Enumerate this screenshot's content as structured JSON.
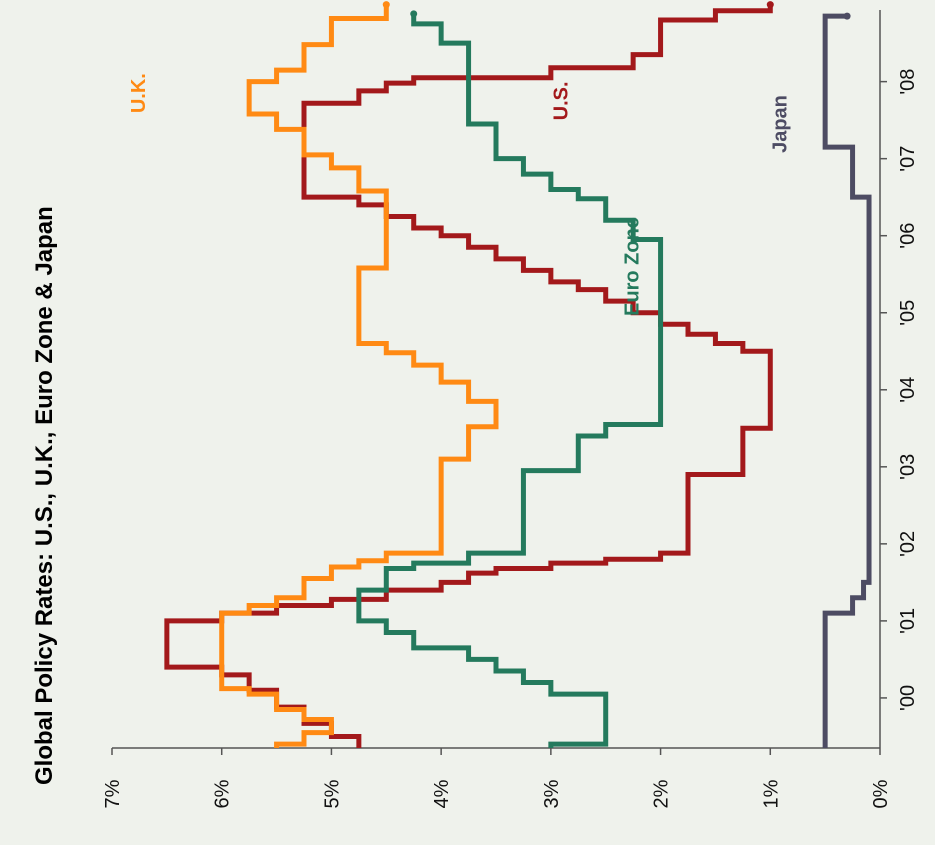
{
  "chart_data": {
    "type": "line",
    "orientation": "rotated-90-clockwise",
    "title": "Global Policy Rates: U.S., U.K., Euro Zone & Japan",
    "xlabel": "",
    "ylabel": "",
    "xlim": [
      1999.35,
      2008.8
    ],
    "ylim": [
      0,
      7
    ],
    "y_ticks": [
      "0%",
      "1%",
      "2%",
      "3%",
      "4%",
      "5%",
      "6%",
      "7%"
    ],
    "x_ticks": [
      "'00",
      "'01",
      "'02",
      "'03",
      "'04",
      "'05",
      "'06",
      "'07",
      "'08"
    ],
    "grid": false,
    "legend": "inline labels",
    "series": [
      {
        "name": "U.S.",
        "color": "#a3191b",
        "label_pos": [
          2007.75,
          2.85
        ],
        "points": [
          [
            1999.35,
            4.75
          ],
          [
            1999.5,
            5.0
          ],
          [
            1999.67,
            5.25
          ],
          [
            1999.88,
            5.5
          ],
          [
            2000.1,
            5.75
          ],
          [
            2000.3,
            6.0
          ],
          [
            2000.4,
            6.5
          ],
          [
            2001.0,
            6.0
          ],
          [
            2001.1,
            5.5
          ],
          [
            2001.2,
            5.0
          ],
          [
            2001.28,
            4.5
          ],
          [
            2001.4,
            4.0
          ],
          [
            2001.5,
            3.75
          ],
          [
            2001.62,
            3.5
          ],
          [
            2001.68,
            3.0
          ],
          [
            2001.75,
            2.5
          ],
          [
            2001.8,
            2.0
          ],
          [
            2001.88,
            1.75
          ],
          [
            2002.9,
            1.25
          ],
          [
            2003.5,
            1.0
          ],
          [
            2004.5,
            1.25
          ],
          [
            2004.6,
            1.5
          ],
          [
            2004.72,
            1.75
          ],
          [
            2004.85,
            2.0
          ],
          [
            2005.0,
            2.25
          ],
          [
            2005.15,
            2.5
          ],
          [
            2005.3,
            2.75
          ],
          [
            2005.4,
            3.0
          ],
          [
            2005.55,
            3.25
          ],
          [
            2005.7,
            3.5
          ],
          [
            2005.85,
            3.75
          ],
          [
            2006.0,
            4.0
          ],
          [
            2006.1,
            4.25
          ],
          [
            2006.25,
            4.5
          ],
          [
            2006.4,
            4.75
          ],
          [
            2006.5,
            5.25
          ],
          [
            2007.72,
            4.75
          ],
          [
            2007.88,
            4.5
          ],
          [
            2007.98,
            4.25
          ],
          [
            2008.05,
            3.0
          ],
          [
            2008.18,
            2.25
          ],
          [
            2008.35,
            2.0
          ],
          [
            2008.8,
            1.5
          ],
          [
            2008.92,
            1.0
          ],
          [
            2009.0,
            1.0
          ]
        ]
      },
      {
        "name": "U.K.",
        "color": "#ff8a14",
        "label_pos": [
          2007.85,
          6.7
        ],
        "points": [
          [
            1999.35,
            5.5
          ],
          [
            1999.4,
            5.25
          ],
          [
            1999.55,
            5.0
          ],
          [
            1999.72,
            5.25
          ],
          [
            1999.85,
            5.5
          ],
          [
            2000.05,
            5.75
          ],
          [
            2000.12,
            6.0
          ],
          [
            2001.1,
            5.75
          ],
          [
            2001.2,
            5.5
          ],
          [
            2001.3,
            5.25
          ],
          [
            2001.55,
            5.0
          ],
          [
            2001.7,
            4.75
          ],
          [
            2001.78,
            4.5
          ],
          [
            2001.88,
            4.0
          ],
          [
            2003.1,
            3.75
          ],
          [
            2003.52,
            3.5
          ],
          [
            2003.85,
            3.75
          ],
          [
            2004.1,
            4.0
          ],
          [
            2004.32,
            4.25
          ],
          [
            2004.48,
            4.5
          ],
          [
            2004.6,
            4.75
          ],
          [
            2005.58,
            4.5
          ],
          [
            2006.58,
            4.75
          ],
          [
            2006.88,
            5.0
          ],
          [
            2007.05,
            5.25
          ],
          [
            2007.38,
            5.5
          ],
          [
            2007.58,
            5.75
          ],
          [
            2008.0,
            5.5
          ],
          [
            2008.15,
            5.25
          ],
          [
            2008.48,
            5.0
          ],
          [
            2008.82,
            4.5
          ],
          [
            2009.0,
            4.5
          ]
        ]
      },
      {
        "name": "Euro Zone",
        "color": "#247a5d",
        "label_pos": [
          2005.6,
          2.2
        ],
        "points": [
          [
            1999.35,
            3.0
          ],
          [
            1999.4,
            2.5
          ],
          [
            2000.05,
            3.0
          ],
          [
            2000.2,
            3.25
          ],
          [
            2000.35,
            3.5
          ],
          [
            2000.5,
            3.75
          ],
          [
            2000.65,
            4.25
          ],
          [
            2000.85,
            4.5
          ],
          [
            2001.0,
            4.75
          ],
          [
            2001.4,
            4.5
          ],
          [
            2001.68,
            4.25
          ],
          [
            2001.75,
            3.75
          ],
          [
            2001.88,
            3.25
          ],
          [
            2002.95,
            2.75
          ],
          [
            2003.4,
            2.5
          ],
          [
            2003.55,
            2.0
          ],
          [
            2005.95,
            2.25
          ],
          [
            2006.2,
            2.5
          ],
          [
            2006.48,
            2.75
          ],
          [
            2006.6,
            3.0
          ],
          [
            2006.8,
            3.25
          ],
          [
            2007.0,
            3.5
          ],
          [
            2007.45,
            3.75
          ],
          [
            2008.5,
            4.0
          ],
          [
            2008.75,
            4.25
          ],
          [
            2008.88,
            4.25
          ]
        ]
      },
      {
        "name": "Japan",
        "color": "#4d4c63",
        "label_pos": [
          2007.45,
          0.85
        ],
        "points": [
          [
            1999.35,
            0.5
          ],
          [
            2001.1,
            0.25
          ],
          [
            2001.3,
            0.15
          ],
          [
            2001.5,
            0.1
          ],
          [
            2006.5,
            0.25
          ],
          [
            2007.15,
            0.5
          ],
          [
            2008.85,
            0.3
          ]
        ]
      }
    ]
  }
}
